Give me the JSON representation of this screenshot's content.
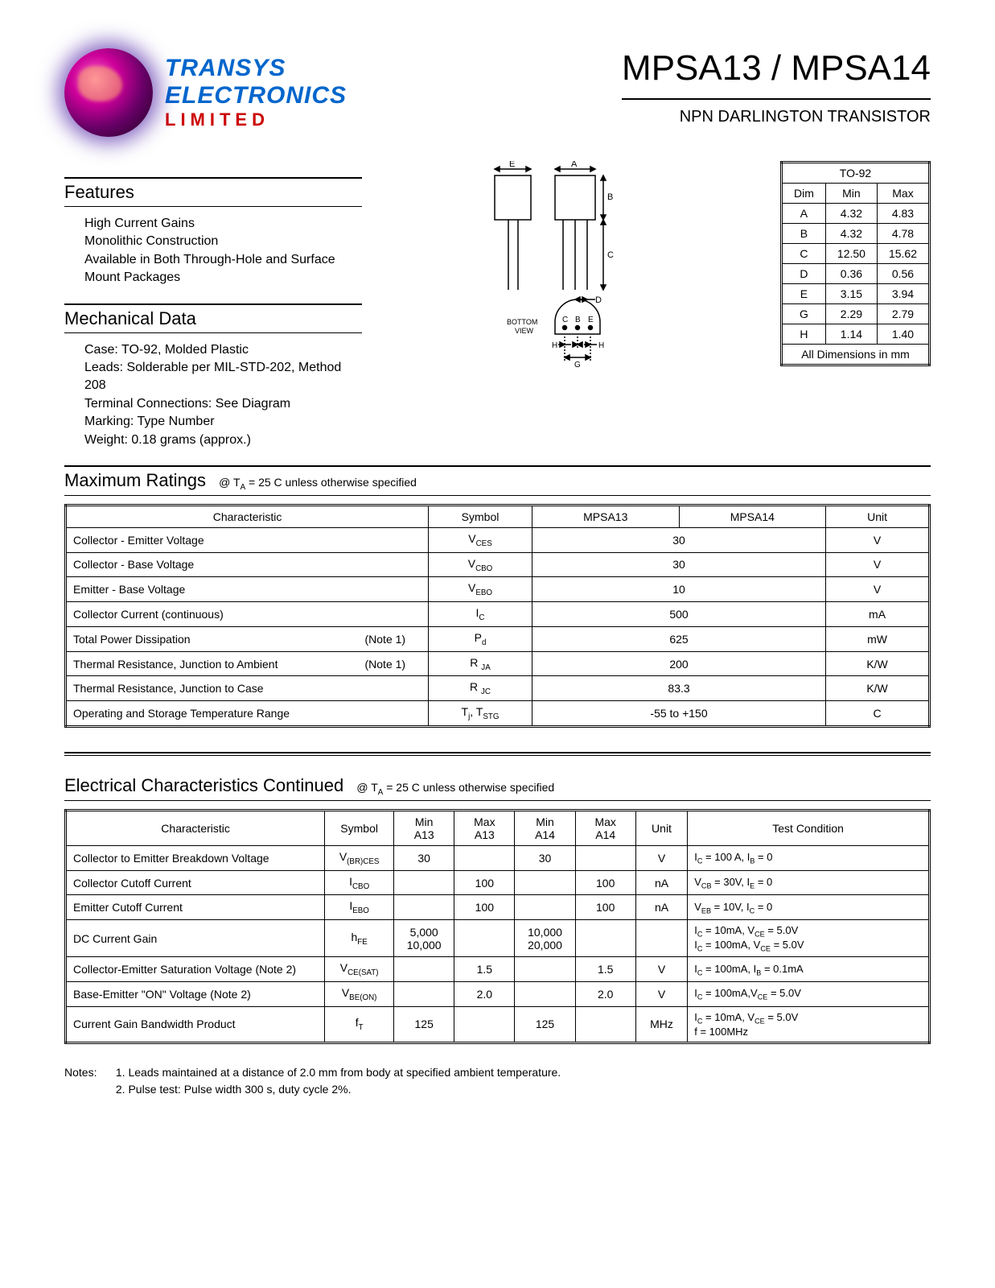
{
  "brand": {
    "line1": "TRANSYS",
    "line2": "ELECTRONICS",
    "line3": "LIMITED"
  },
  "title": "MPSA13 / MPSA14",
  "subtitle": "NPN DARLINGTON TRANSISTOR",
  "features": {
    "heading": "Features",
    "items": [
      "High Current Gains",
      "Monolithic Construction",
      "Available in Both Through-Hole and Surface Mount Packages"
    ]
  },
  "mechanical": {
    "heading": "Mechanical Data",
    "items": [
      "Case: TO-92, Molded Plastic",
      "Leads: Solderable per MIL-STD-202, Method 208",
      "Terminal Connections: See Diagram",
      "Marking:  Type Number",
      "Weight: 0.18 grams (approx.)"
    ]
  },
  "diagram_labels": {
    "bottom_view": "BOTTOM VIEW",
    "pins": "C B E"
  },
  "dimensions": {
    "title": "TO-92",
    "header": [
      "Dim",
      "Min",
      "Max"
    ],
    "rows": [
      [
        "A",
        "4.32",
        "4.83"
      ],
      [
        "B",
        "4.32",
        "4.78"
      ],
      [
        "C",
        "12.50",
        "15.62"
      ],
      [
        "D",
        "0.36",
        "0.56"
      ],
      [
        "E",
        "3.15",
        "3.94"
      ],
      [
        "G",
        "2.29",
        "2.79"
      ],
      [
        "H",
        "1.14",
        "1.40"
      ]
    ],
    "footer": "All Dimensions in mm"
  },
  "ratings": {
    "heading": "Maximum Ratings",
    "condition": "@ T",
    "condition2": " = 25  C unless otherwise specified",
    "header": [
      "Characteristic",
      "Symbol",
      "MPSA13",
      "MPSA14",
      "Unit"
    ],
    "rows": [
      {
        "char": "Collector - Emitter Voltage",
        "note": "",
        "sym": "V",
        "sub": "CES",
        "val": "30",
        "unit": "V"
      },
      {
        "char": "Collector - Base Voltage",
        "note": "",
        "sym": "V",
        "sub": "CBO",
        "val": "30",
        "unit": "V"
      },
      {
        "char": "Emitter - Base Voltage",
        "note": "",
        "sym": "V",
        "sub": "EBO",
        "val": "10",
        "unit": "V"
      },
      {
        "char": "Collector Current (continuous)",
        "note": "",
        "sym": "I",
        "sub": "C",
        "val": "500",
        "unit": "mA"
      },
      {
        "char": "Total Power Dissipation",
        "note": "(Note 1)",
        "sym": "P",
        "sub": "d",
        "val": "625",
        "unit": "mW"
      },
      {
        "char": "Thermal Resistance, Junction to Ambient",
        "note": "(Note 1)",
        "sym": "R ",
        "sub": "JA",
        "val": "200",
        "unit": "K/W"
      },
      {
        "char": "Thermal Resistance, Junction to Case",
        "note": "",
        "sym": "R ",
        "sub": "JC",
        "val": "83.3",
        "unit": "K/W"
      },
      {
        "char": "Operating and Storage Temperature Range",
        "note": "",
        "sym": "T",
        "sub": "j, TSTG",
        "val": "-55 to +150",
        "unit": "C",
        "raw_sym": "T<sub>j</sub>, T<sub>STG</sub>"
      }
    ]
  },
  "electrical": {
    "heading": "Electrical Characteristics Continued",
    "condition": "@ T",
    "condition2": " = 25  C unless otherwise specified",
    "header": [
      "Characteristic",
      "Symbol",
      "Min A13",
      "Max A13",
      "Min A14",
      "Max A14",
      "Unit",
      "Test Condition"
    ],
    "rows": [
      {
        "char": "Collector to Emitter Breakdown Voltage",
        "sym": "V<sub>(BR)CES</sub>",
        "min13": "30",
        "max13": "",
        "min14": "30",
        "max14": "",
        "unit": "V",
        "cond": "I<sub>C</sub> = 100  A, I<sub>B</sub> = 0"
      },
      {
        "char": "Collector Cutoff Current",
        "sym": "I<sub>CBO</sub>",
        "min13": "",
        "max13": "100",
        "min14": "",
        "max14": "100",
        "unit": "nA",
        "cond": "V<sub>CB</sub> = 30V, I<sub>E</sub> = 0"
      },
      {
        "char": "Emitter Cutoff Current",
        "sym": "I<sub>EBO</sub>",
        "min13": "",
        "max13": "100",
        "min14": "",
        "max14": "100",
        "unit": "nA",
        "cond": "V<sub>EB</sub> = 10V, I<sub>C</sub> = 0"
      },
      {
        "char": "DC Current Gain",
        "sym": "h<sub>FE</sub>",
        "min13": "5,000<br>10,000",
        "max13": "",
        "min14": "10,000<br>20,000",
        "max14": "",
        "unit": "",
        "cond": "I<sub>C</sub> = 10mA, V<sub>CE</sub> = 5.0V<br>I<sub>C</sub> = 100mA, V<sub>CE</sub> = 5.0V"
      },
      {
        "char": "Collector-Emitter Saturation Voltage (Note 2)",
        "sym": "V<sub>CE(SAT)</sub>",
        "min13": "",
        "max13": "1.5",
        "min14": "",
        "max14": "1.5",
        "unit": "V",
        "cond": "I<sub>C</sub> = 100mA, I<sub>B</sub> = 0.1mA"
      },
      {
        "char": "Base-Emitter \"ON\" Voltage (Note 2)",
        "sym": "V<sub>BE(ON)</sub>",
        "min13": "",
        "max13": "2.0",
        "min14": "",
        "max14": "2.0",
        "unit": "V",
        "cond": "I<sub>C</sub> = 100mA,V<sub>CE</sub> = 5.0V"
      },
      {
        "char": "Current Gain Bandwidth Product",
        "sym": "f<sub>T</sub>",
        "min13": "125",
        "max13": "",
        "min14": "125",
        "max14": "",
        "unit": "MHz",
        "cond": "I<sub>C</sub> = 10mA, V<sub>CE</sub> = 5.0V<br>f = 100MHz"
      }
    ]
  },
  "notes": {
    "label": "Notes:",
    "items": [
      "1. Leads maintained at a distance of 2.0 mm from body at specified ambient temperature.",
      "2. Pulse test: Pulse width   300  s, duty cycle   2%."
    ]
  },
  "colors": {
    "brand_blue": "#0066cc",
    "brand_red": "#cc0000",
    "text": "#000000",
    "bg": "#ffffff"
  }
}
